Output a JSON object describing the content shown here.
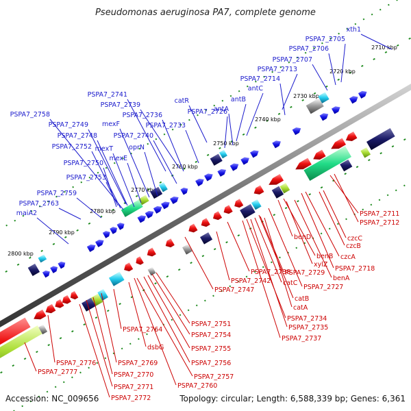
{
  "title": "Pseudomonas aeruginosa PA7, complete genome",
  "footer": {
    "accession": "Accession: NC_009656",
    "summary": "Topology: circular; Length: 6,588,339 bp; Genes: 6,361"
  },
  "kbp_labels": [
    "2710 kbp",
    "2720 kbp",
    "2730 kbp",
    "2740 kbp",
    "2750 kbp",
    "2760 kbp",
    "2770 kbp",
    "2780 kbp",
    "2790 kbp",
    "2800 kbp"
  ],
  "upper_labels": [
    "xth1",
    "PSPA7_2705",
    "PSPA7_2706",
    "PSPA7_2707",
    "PSPA7_2713",
    "PSPA7_2714",
    "antC",
    "antB",
    "antA",
    "catR",
    "PSPA7_2726",
    "PSPA7_2741",
    "PSPA7_2739",
    "PSPA7_2736",
    "PSPA7_2733",
    "mexF",
    "PSPA7_2740",
    "oprN",
    "mexE",
    "mexT",
    "PSPA7_2758",
    "PSPA7_2749",
    "PSPA7_2748",
    "PSPA7_2752",
    "PSPA7_2750",
    "PSPA7_2753",
    "PSPA7_2759",
    "PSPA7_2763",
    "maiA2"
  ],
  "lower_labels": [
    "PSPA7_2711",
    "PSPA7_2712",
    "czcC",
    "czcB",
    "czcA",
    "PSPA7_2718",
    "benD",
    "benB",
    "xylZ",
    "benA",
    "PSPA7_2729",
    "PSPA7_2727",
    "PSPA7_2738",
    "catC",
    "catB",
    "catA",
    "PSPA7_2734",
    "PSPA7_2735",
    "PSPA7_2737",
    "PSPA7_2742",
    "PSPA7_2747",
    "PSPA7_2751",
    "PSPA7_2754",
    "PSPA7_2755",
    "PSPA7_2756",
    "PSPA7_2757",
    "PSPA7_2760",
    "PSPA7_2764",
    "dsbG",
    "PSPA7_2769",
    "PSPA7_2770",
    "PSPA7_2771",
    "PSPA7_2772",
    "PSPA7_2776",
    "PSPA7_2777"
  ],
  "colors": {
    "forward_strand": "#1010e0",
    "reverse_strand": "#ee0000",
    "upper_labels": "#1a1acc",
    "lower_labels": "#cc0000",
    "backbone": "#777777",
    "ticks": "#1e8a1e",
    "rrna_like": "#22dd99"
  }
}
